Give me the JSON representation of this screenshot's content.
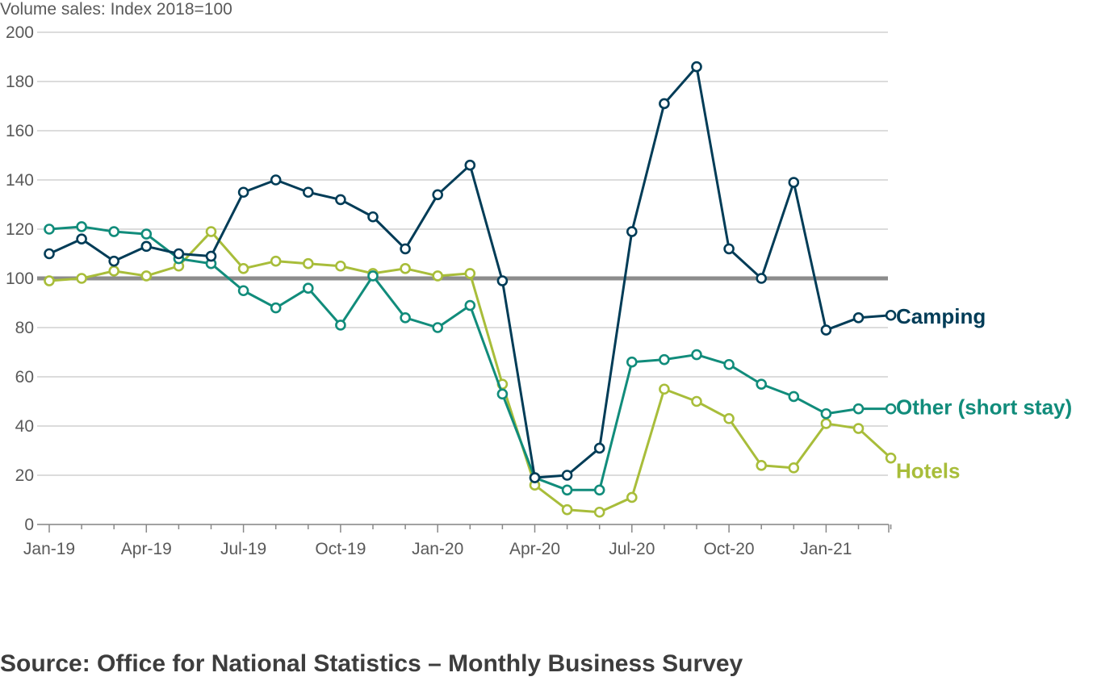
{
  "chart_data": {
    "type": "line",
    "ylabel": "Volume sales: Index 2018=100",
    "source": "Source: Office for National Statistics – Monthly Business Survey",
    "ylim": [
      0,
      200
    ],
    "yticks": [
      0,
      20,
      40,
      60,
      80,
      100,
      120,
      140,
      160,
      180,
      200
    ],
    "x": [
      "Jan-19",
      "Feb-19",
      "Mar-19",
      "Apr-19",
      "May-19",
      "Jun-19",
      "Jul-19",
      "Aug-19",
      "Sep-19",
      "Oct-19",
      "Nov-19",
      "Dec-19",
      "Jan-20",
      "Feb-20",
      "Mar-20",
      "Apr-20",
      "May-20",
      "Jun-20",
      "Jul-20",
      "Aug-20",
      "Sep-20",
      "Oct-20",
      "Nov-20",
      "Dec-20",
      "Jan-21",
      "Feb-21",
      "Mar-21"
    ],
    "xtick_labels": [
      "Jan-19",
      "Apr-19",
      "Jul-19",
      "Oct-19",
      "Jan-20",
      "Apr-20",
      "Jul-20",
      "Oct-20",
      "Jan-21"
    ],
    "reference_line": 100,
    "grid": true,
    "series": [
      {
        "name": "Camping",
        "color": "#003c57",
        "values": [
          110,
          116,
          107,
          113,
          110,
          109,
          135,
          140,
          135,
          132,
          125,
          112,
          134,
          146,
          99,
          19,
          20,
          31,
          119,
          171,
          186,
          112,
          100,
          139,
          79,
          84,
          85
        ]
      },
      {
        "name": "Other (short stay)",
        "color": "#118c7b",
        "values": [
          120,
          121,
          119,
          118,
          108,
          106,
          95,
          88,
          96,
          81,
          101,
          84,
          80,
          89,
          53,
          19,
          14,
          14,
          66,
          67,
          69,
          65,
          57,
          52,
          45,
          47,
          47
        ]
      },
      {
        "name": "Hotels",
        "color": "#a8bd3a",
        "values": [
          99,
          100,
          103,
          101,
          105,
          119,
          104,
          107,
          106,
          105,
          102,
          104,
          101,
          102,
          57,
          16,
          6,
          5,
          11,
          55,
          50,
          43,
          24,
          23,
          41,
          39,
          27
        ]
      }
    ]
  }
}
